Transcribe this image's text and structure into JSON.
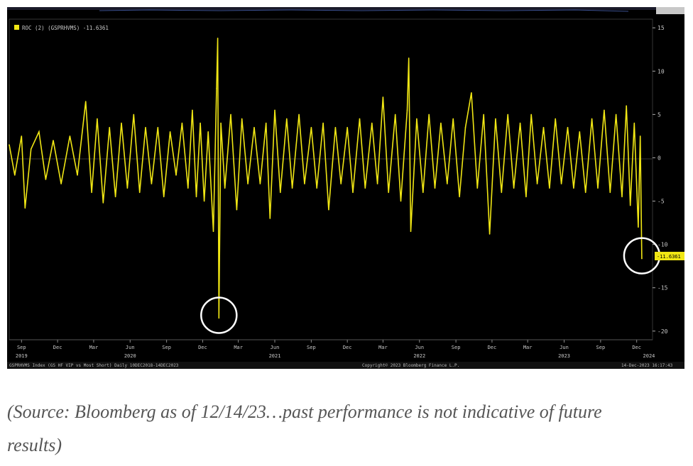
{
  "chart_data": {
    "type": "bar",
    "legend": "ROC (2) (GSPRHVMS) -11.6361",
    "last_value_label": "-11.6361",
    "y_ticks": [
      15,
      10,
      5,
      0,
      -5,
      -10,
      -15,
      -20
    ],
    "ylim": [
      -21,
      16
    ],
    "x_start": "2019-08-01",
    "x_end": "2024-01-10",
    "month_ticks": [
      {
        "label": "Sep",
        "date": "2019-09-01"
      },
      {
        "label": "Dec",
        "date": "2019-12-01"
      },
      {
        "label": "Mar",
        "date": "2020-03-01"
      },
      {
        "label": "Jun",
        "date": "2020-06-01"
      },
      {
        "label": "Sep",
        "date": "2020-09-01"
      },
      {
        "label": "Dec",
        "date": "2020-12-01"
      },
      {
        "label": "Mar",
        "date": "2021-03-01"
      },
      {
        "label": "Jun",
        "date": "2021-06-01"
      },
      {
        "label": "Sep",
        "date": "2021-09-01"
      },
      {
        "label": "Dec",
        "date": "2021-12-01"
      },
      {
        "label": "Mar",
        "date": "2022-03-01"
      },
      {
        "label": "Jun",
        "date": "2022-06-01"
      },
      {
        "label": "Sep",
        "date": "2022-09-01"
      },
      {
        "label": "Dec",
        "date": "2022-12-01"
      },
      {
        "label": "Mar",
        "date": "2023-03-01"
      },
      {
        "label": "Jun",
        "date": "2023-06-01"
      },
      {
        "label": "Sep",
        "date": "2023-09-01"
      },
      {
        "label": "Dec",
        "date": "2023-12-01"
      }
    ],
    "year_ticks": [
      {
        "label": "2019",
        "date": "2019-09-01"
      },
      {
        "label": "2020",
        "date": "2020-06-01"
      },
      {
        "label": "2021",
        "date": "2021-06-01"
      },
      {
        "label": "2022",
        "date": "2022-06-01"
      },
      {
        "label": "2023",
        "date": "2023-06-01"
      },
      {
        "label": "2024",
        "date": "2024-01-01"
      }
    ],
    "series": [
      {
        "color": "#f0e614",
        "points": [
          [
            "2019-08-01",
            1.5
          ],
          [
            "2019-08-15",
            -2.0
          ],
          [
            "2019-09-01",
            2.5
          ],
          [
            "2019-09-10",
            -5.8
          ],
          [
            "2019-09-25",
            1.0
          ],
          [
            "2019-10-15",
            3.0
          ],
          [
            "2019-11-01",
            -2.5
          ],
          [
            "2019-11-20",
            2.0
          ],
          [
            "2019-12-10",
            -3.0
          ],
          [
            "2020-01-01",
            2.5
          ],
          [
            "2020-01-20",
            -2.0
          ],
          [
            "2020-02-10",
            6.5
          ],
          [
            "2020-02-25",
            -4.0
          ],
          [
            "2020-03-10",
            4.5
          ],
          [
            "2020-03-25",
            -5.2
          ],
          [
            "2020-04-10",
            3.5
          ],
          [
            "2020-04-25",
            -4.5
          ],
          [
            "2020-05-10",
            4.0
          ],
          [
            "2020-05-25",
            -3.5
          ],
          [
            "2020-06-10",
            5.0
          ],
          [
            "2020-06-25",
            -4.0
          ],
          [
            "2020-07-10",
            3.5
          ],
          [
            "2020-07-25",
            -3.0
          ],
          [
            "2020-08-10",
            3.5
          ],
          [
            "2020-08-25",
            -4.5
          ],
          [
            "2020-09-10",
            3.0
          ],
          [
            "2020-09-25",
            -2.0
          ],
          [
            "2020-10-10",
            4.0
          ],
          [
            "2020-10-25",
            -3.5
          ],
          [
            "2020-11-05",
            5.5
          ],
          [
            "2020-11-15",
            -4.5
          ],
          [
            "2020-11-25",
            4.0
          ],
          [
            "2020-12-05",
            -5.0
          ],
          [
            "2020-12-15",
            3.0
          ],
          [
            "2020-12-28",
            -8.5
          ],
          [
            "2021-01-05",
            8.0
          ],
          [
            "2021-01-08",
            13.8
          ],
          [
            "2021-01-11",
            -18.5
          ],
          [
            "2021-01-16",
            4.0
          ],
          [
            "2021-01-26",
            -3.5
          ],
          [
            "2021-02-10",
            5.0
          ],
          [
            "2021-02-25",
            -6.0
          ],
          [
            "2021-03-10",
            4.5
          ],
          [
            "2021-03-25",
            -3.0
          ],
          [
            "2021-04-10",
            3.5
          ],
          [
            "2021-04-25",
            -3.0
          ],
          [
            "2021-05-10",
            4.0
          ],
          [
            "2021-05-20",
            -7.0
          ],
          [
            "2021-06-01",
            5.5
          ],
          [
            "2021-06-15",
            -4.0
          ],
          [
            "2021-07-01",
            4.5
          ],
          [
            "2021-07-15",
            -3.5
          ],
          [
            "2021-08-01",
            5.0
          ],
          [
            "2021-08-15",
            -3.0
          ],
          [
            "2021-09-01",
            3.5
          ],
          [
            "2021-09-15",
            -3.5
          ],
          [
            "2021-10-01",
            4.0
          ],
          [
            "2021-10-15",
            -6.0
          ],
          [
            "2021-11-01",
            3.5
          ],
          [
            "2021-11-15",
            -3.0
          ],
          [
            "2021-12-01",
            3.5
          ],
          [
            "2021-12-15",
            -4.0
          ],
          [
            "2022-01-01",
            4.5
          ],
          [
            "2022-01-15",
            -3.5
          ],
          [
            "2022-02-01",
            4.0
          ],
          [
            "2022-02-15",
            -3.0
          ],
          [
            "2022-03-01",
            7.0
          ],
          [
            "2022-03-15",
            -4.0
          ],
          [
            "2022-04-01",
            5.0
          ],
          [
            "2022-04-15",
            -5.0
          ],
          [
            "2022-05-01",
            5.5
          ],
          [
            "2022-05-05",
            11.5
          ],
          [
            "2022-05-10",
            -8.5
          ],
          [
            "2022-05-25",
            4.5
          ],
          [
            "2022-06-10",
            -4.0
          ],
          [
            "2022-06-25",
            5.0
          ],
          [
            "2022-07-10",
            -3.5
          ],
          [
            "2022-07-25",
            4.0
          ],
          [
            "2022-08-10",
            -3.0
          ],
          [
            "2022-08-25",
            4.5
          ],
          [
            "2022-09-10",
            -4.5
          ],
          [
            "2022-09-25",
            3.5
          ],
          [
            "2022-10-10",
            7.5
          ],
          [
            "2022-10-25",
            -3.5
          ],
          [
            "2022-11-10",
            5.0
          ],
          [
            "2022-11-25",
            -8.8
          ],
          [
            "2022-12-10",
            4.5
          ],
          [
            "2022-12-25",
            -4.0
          ],
          [
            "2023-01-10",
            5.0
          ],
          [
            "2023-01-25",
            -3.5
          ],
          [
            "2023-02-10",
            4.0
          ],
          [
            "2023-02-25",
            -4.5
          ],
          [
            "2023-03-10",
            5.0
          ],
          [
            "2023-03-25",
            -3.0
          ],
          [
            "2023-04-10",
            3.5
          ],
          [
            "2023-04-25",
            -3.5
          ],
          [
            "2023-05-10",
            4.5
          ],
          [
            "2023-05-25",
            -3.0
          ],
          [
            "2023-06-10",
            3.5
          ],
          [
            "2023-06-25",
            -3.5
          ],
          [
            "2023-07-10",
            3.0
          ],
          [
            "2023-07-25",
            -4.0
          ],
          [
            "2023-08-10",
            4.5
          ],
          [
            "2023-08-25",
            -3.5
          ],
          [
            "2023-09-10",
            5.5
          ],
          [
            "2023-09-25",
            -4.0
          ],
          [
            "2023-10-10",
            5.0
          ],
          [
            "2023-10-25",
            -4.5
          ],
          [
            "2023-11-05",
            6.0
          ],
          [
            "2023-11-15",
            -5.5
          ],
          [
            "2023-11-25",
            4.0
          ],
          [
            "2023-12-05",
            -8.0
          ],
          [
            "2023-12-10",
            2.5
          ],
          [
            "2023-12-14",
            -11.6361
          ]
        ]
      }
    ],
    "source_left": "GSPRHVMS Index (GS HF VIP vs Most Short)  Daily 10DEC2018-14DEC2023",
    "copyright": "Copyright© 2023 Bloomberg Finance L.P.",
    "timestamp": "14-Dec-2023 16:17:43",
    "highlights": [
      {
        "date": "2021-01-11",
        "value": -18.5
      },
      {
        "date": "2023-12-14",
        "value": -11.6361
      }
    ]
  },
  "caption": {
    "line1": "(Source: Bloomberg as of 12/14/23…past performance is not indicative of future",
    "line2": "results)"
  }
}
